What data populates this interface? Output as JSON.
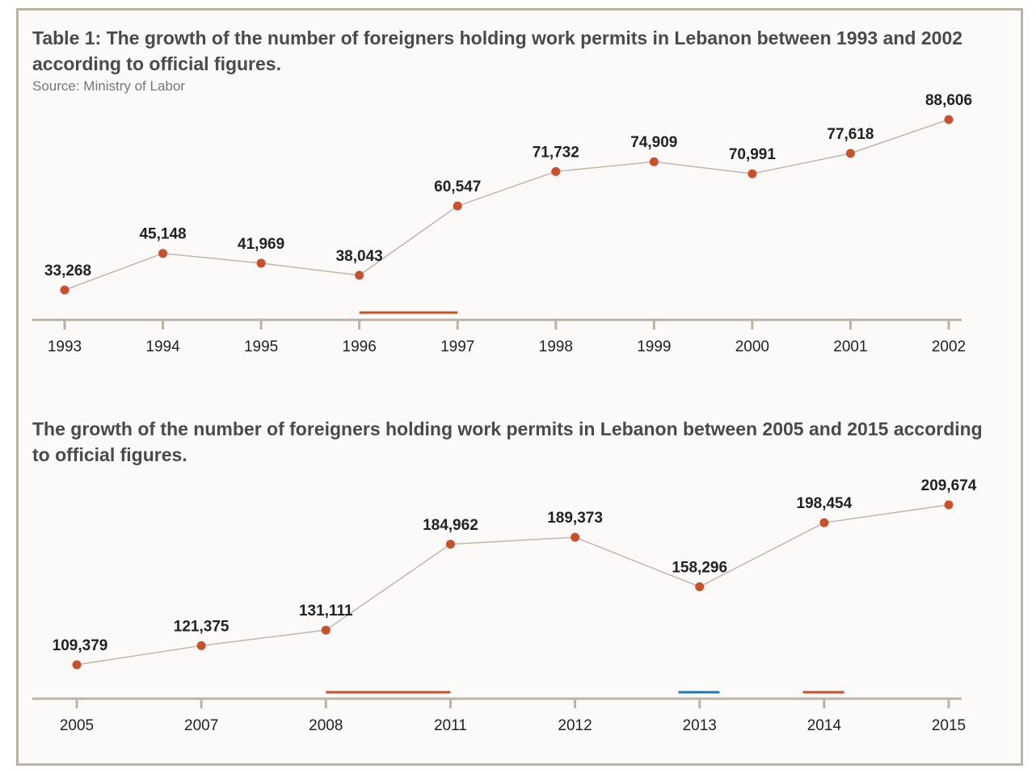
{
  "chart_data": [
    {
      "type": "line",
      "title": "Table 1: The growth of the number of foreigners holding work permits in Lebanon between 1993 and 2002 according to official figures.",
      "subtitle": "Source: Ministry of Labor",
      "categories": [
        "1993",
        "1994",
        "1995",
        "1996",
        "1997",
        "1998",
        "1999",
        "2000",
        "2001",
        "2002"
      ],
      "values": [
        33268,
        45148,
        41969,
        38043,
        60547,
        71732,
        74909,
        70991,
        77618,
        88606
      ],
      "labels": [
        "33,268",
        "45,148",
        "41,969",
        "38,043",
        "60,547",
        "71,732",
        "74,909",
        "70,991",
        "77,618",
        "88,606"
      ],
      "highlights": [
        {
          "from": 3,
          "to": 4,
          "color": "#c8502a"
        }
      ],
      "grid": false,
      "colors": {
        "point": "#c8502a",
        "line": "#bdb8ae",
        "axis": "#b8b4a8"
      }
    },
    {
      "type": "line",
      "title": "The growth of the number of foreigners holding work permits in Lebanon between 2005 and 2015 according to official figures.",
      "categories": [
        "2005",
        "2007",
        "2008",
        "2011",
        "2012",
        "2013",
        "2014",
        "2015"
      ],
      "values": [
        109379,
        121375,
        131111,
        184962,
        189373,
        158296,
        198454,
        209674
      ],
      "labels": [
        "109,379",
        "121,375",
        "131,111",
        "184,962",
        "189,373",
        "158,296",
        "198,454",
        "209,674"
      ],
      "highlights": [
        {
          "from": 2,
          "to": 3,
          "color": "#c8502a"
        },
        {
          "from": 4.83,
          "to": 5.16,
          "color": "#1a7ab5"
        },
        {
          "from": 5.83,
          "to": 6.16,
          "color": "#c8502a"
        }
      ],
      "grid": false,
      "colors": {
        "point": "#c8502a",
        "line": "#bdb8ae",
        "axis": "#b8b4a8"
      }
    }
  ]
}
